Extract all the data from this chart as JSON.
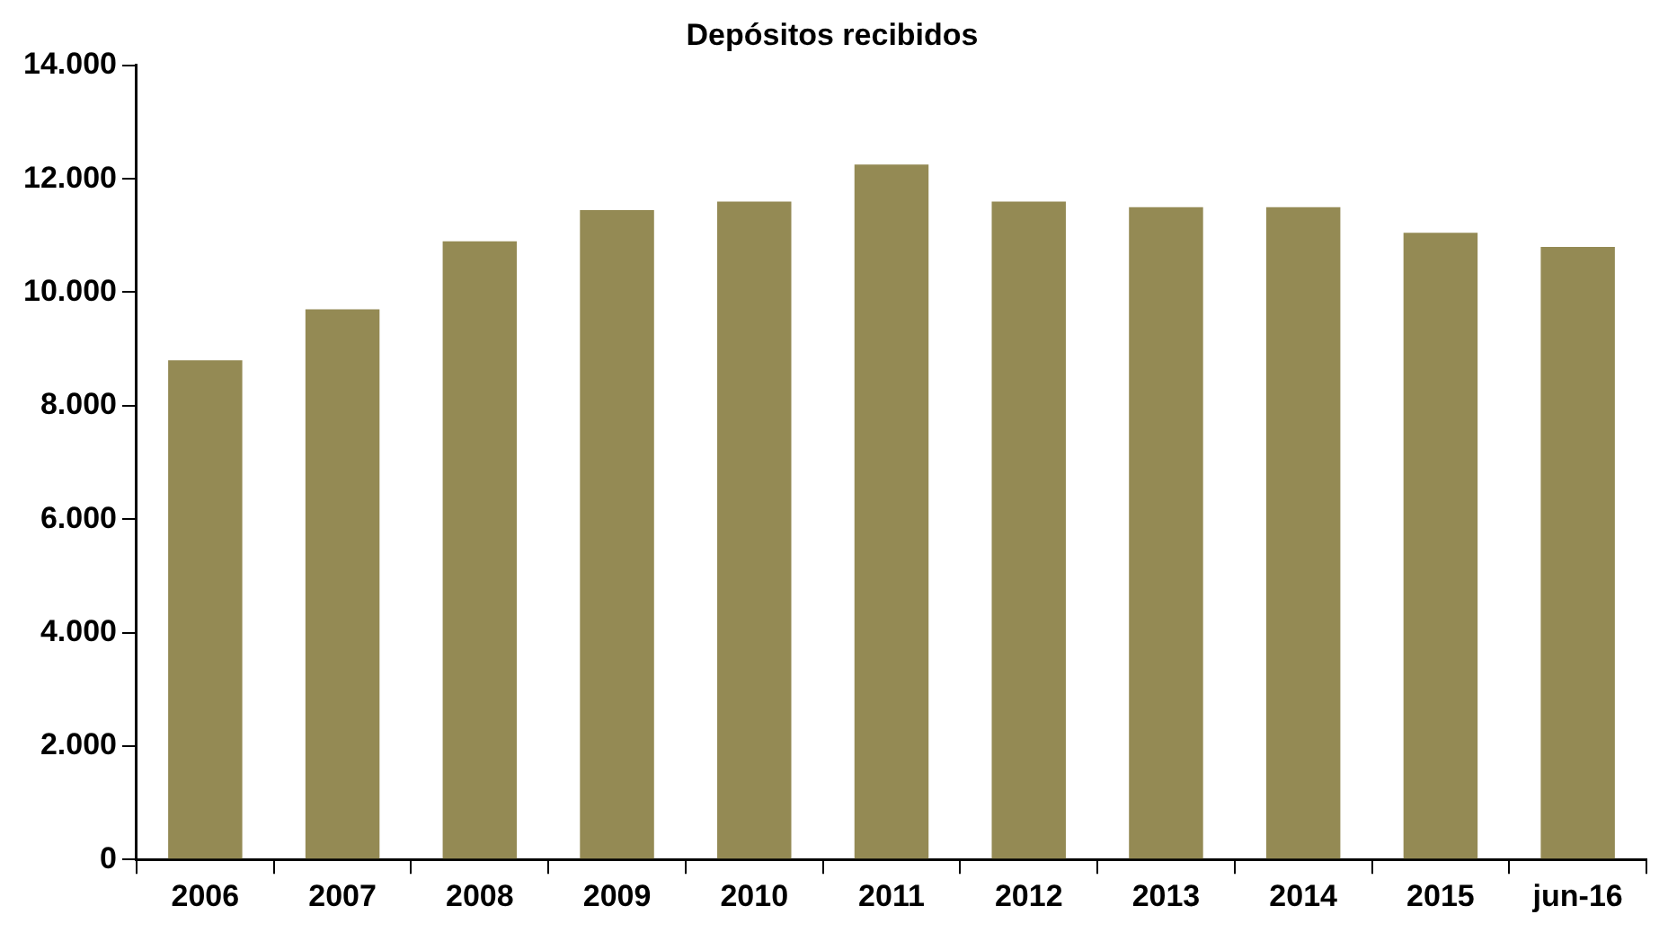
{
  "chart_data": {
    "type": "bar",
    "title": "Depósitos recibidos",
    "categories": [
      "2006",
      "2007",
      "2008",
      "2009",
      "2010",
      "2011",
      "2012",
      "2013",
      "2014",
      "2015",
      "jun-16"
    ],
    "series": [
      {
        "color": "#948a54",
        "values": [
          8800,
          9700,
          10900,
          11450,
          11600,
          12250,
          11600,
          11500,
          11500,
          11050,
          10800
        ]
      }
    ],
    "ylim": [
      0,
      14000
    ],
    "yticks": [
      {
        "value": 0,
        "label": "0"
      },
      {
        "value": 2000,
        "label": "2.000"
      },
      {
        "value": 4000,
        "label": "4.000"
      },
      {
        "value": 6000,
        "label": "6.000"
      },
      {
        "value": 8000,
        "label": "8.000"
      },
      {
        "value": 10000,
        "label": "10.000"
      },
      {
        "value": 12000,
        "label": "12.000"
      },
      {
        "value": 14000,
        "label": "14.000"
      }
    ],
    "grid": false,
    "legend": false
  }
}
